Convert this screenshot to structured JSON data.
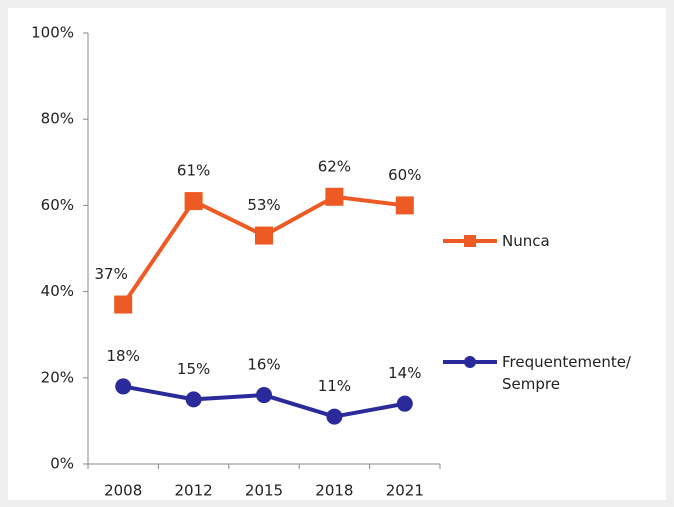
{
  "chart_data": {
    "type": "line",
    "categories": [
      "2008",
      "2012",
      "2015",
      "2018",
      "2021"
    ],
    "series": [
      {
        "name": "Nunca",
        "color": "#ee5a24",
        "marker": "square",
        "values": [
          37,
          61,
          53,
          62,
          60
        ],
        "value_labels": [
          "37%",
          "61%",
          "53%",
          "62%",
          "60%"
        ]
      },
      {
        "name": "Frequentemente/ Sempre",
        "color": "#2b2a9b",
        "marker": "circle",
        "values": [
          18,
          15,
          16,
          11,
          14
        ],
        "value_labels": [
          "18%",
          "15%",
          "16%",
          "11%",
          "14%"
        ]
      }
    ],
    "ylim": [
      0,
      100
    ],
    "yticks": [
      {
        "value": 0,
        "label": "0%"
      },
      {
        "value": 20,
        "label": "20%"
      },
      {
        "value": 40,
        "label": "40%"
      },
      {
        "value": 60,
        "label": "60%"
      },
      {
        "value": 80,
        "label": "80%"
      },
      {
        "value": 100,
        "label": "100%"
      }
    ],
    "legend": "right",
    "grid": false
  }
}
